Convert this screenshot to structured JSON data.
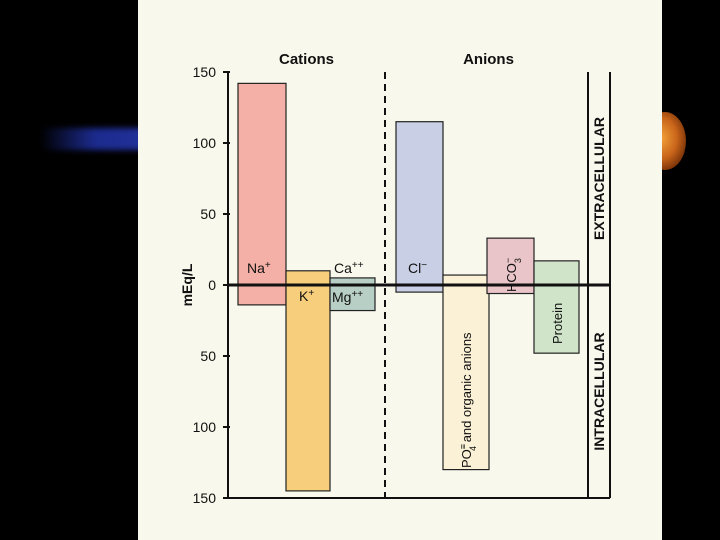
{
  "chart_data": {
    "type": "bar",
    "ylabel": "mEq/L",
    "sections": [
      {
        "label": "Cations"
      },
      {
        "label": "Anions"
      }
    ],
    "compartments": [
      {
        "label": "EXTRACELLULAR",
        "sign": 1
      },
      {
        "label": "INTRACELLULAR",
        "sign": -1
      }
    ],
    "y_ticks": [
      150,
      100,
      50,
      0,
      50,
      100,
      150
    ],
    "ylim": [
      -150,
      150
    ],
    "bars": [
      {
        "ion": "Na+",
        "label_main": "Na",
        "label_sup": "+",
        "extracellular": 142,
        "intracellular": 14,
        "color": "#f4b0a6"
      },
      {
        "ion": "K+",
        "label_main": "K",
        "label_sup": "+",
        "extracellular": 10,
        "intracellular": 145,
        "color": "#f7cf7c"
      },
      {
        "ion": "Ca++/Mg++",
        "label_top_main": "Ca",
        "label_top_sup": "++",
        "label_bottom_main": "Mg",
        "label_bottom_sup": "++",
        "extracellular": 5,
        "intracellular": 18,
        "color": "#b8cfc6"
      },
      {
        "ion": "Cl-",
        "label_main": "Cl",
        "label_sup": "−",
        "extracellular": 115,
        "intracellular": 5,
        "color": "#c9d0e6"
      },
      {
        "ion": "PO4= and organic anions",
        "label_main": "PO",
        "label_sup": "≡",
        "label_sub": "4",
        "label_rest": " and organic anions",
        "extracellular": 7,
        "intracellular": 130,
        "color": "#fbf1d6"
      },
      {
        "ion": "HCO3-",
        "label_main": "HCO",
        "label_sub": "3",
        "label_sup": "−",
        "extracellular": 33,
        "intracellular": 6,
        "color": "#e9c4c8"
      },
      {
        "ion": "Protein",
        "label_main": "Protein",
        "extracellular": 17,
        "intracellular": 48,
        "color": "#cfe4c8"
      }
    ]
  }
}
